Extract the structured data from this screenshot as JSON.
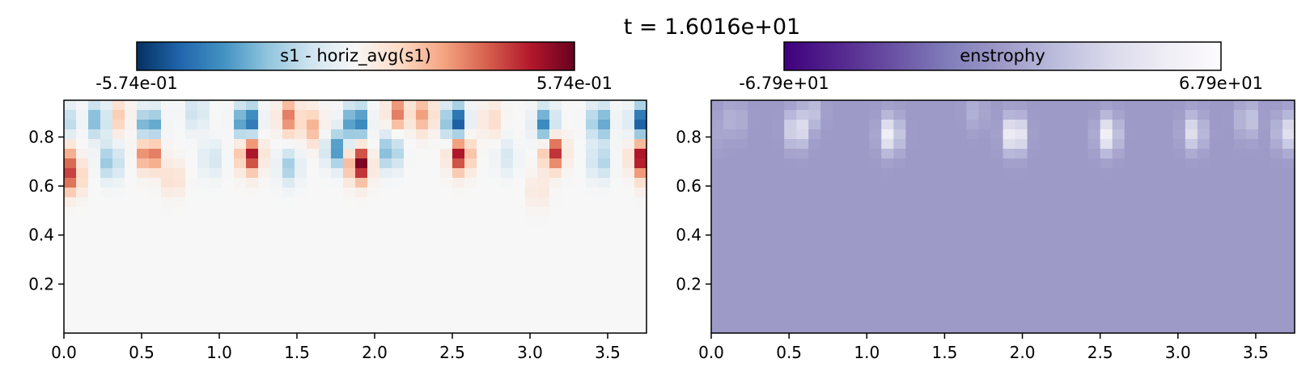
{
  "figure": {
    "title": "t = 1.6016e+01"
  },
  "chart_data": [
    {
      "type": "heatmap",
      "colormap": "RdBu_r",
      "colorbar": {
        "label": "s1 - horiz_avg(s1)",
        "min_label": "-5.74e-01",
        "max_label": "5.74e-01",
        "range": [
          -0.574,
          0.574
        ],
        "placement": "top"
      },
      "xlim": [
        0.0,
        3.75
      ],
      "ylim": [
        0.0,
        0.95
      ],
      "x_ticks": [
        0.0,
        0.5,
        1.0,
        1.5,
        2.0,
        2.5,
        3.0,
        3.5
      ],
      "x_tick_labels": [
        "0.0",
        "0.5",
        "1.0",
        "1.5",
        "2.0",
        "2.5",
        "3.0",
        "3.5"
      ],
      "y_ticks": [
        0.2,
        0.4,
        0.6,
        0.8
      ],
      "y_tick_labels": [
        "0.2",
        "0.4",
        "0.6",
        "0.8"
      ],
      "grid": false,
      "features": [
        {
          "x": 0.22,
          "y": 0.87,
          "value": -0.3
        },
        {
          "x": 0.35,
          "y": 0.88,
          "value": 0.15
        },
        {
          "x": 0.55,
          "y": 0.84,
          "value": -0.45
        },
        {
          "x": 0.85,
          "y": 0.9,
          "value": -0.15
        },
        {
          "x": 1.18,
          "y": 0.86,
          "value": -0.55
        },
        {
          "x": 1.45,
          "y": 0.88,
          "value": 0.3
        },
        {
          "x": 1.6,
          "y": 0.84,
          "value": 0.2
        },
        {
          "x": 1.88,
          "y": 0.86,
          "value": -0.5
        },
        {
          "x": 2.15,
          "y": 0.9,
          "value": 0.3
        },
        {
          "x": 2.32,
          "y": 0.89,
          "value": 0.25
        },
        {
          "x": 2.52,
          "y": 0.86,
          "value": -0.55
        },
        {
          "x": 2.75,
          "y": 0.87,
          "value": 0.12
        },
        {
          "x": 3.1,
          "y": 0.85,
          "value": -0.4
        },
        {
          "x": 3.45,
          "y": 0.86,
          "value": -0.35
        },
        {
          "x": 3.72,
          "y": 0.86,
          "value": -0.5
        },
        {
          "x": 0.05,
          "y": 0.64,
          "value": 0.35
        },
        {
          "x": 0.55,
          "y": 0.74,
          "value": 0.45
        },
        {
          "x": 1.2,
          "y": 0.73,
          "value": 0.5
        },
        {
          "x": 1.9,
          "y": 0.69,
          "value": 0.57
        },
        {
          "x": 2.55,
          "y": 0.73,
          "value": 0.5
        },
        {
          "x": 3.15,
          "y": 0.74,
          "value": 0.45
        },
        {
          "x": 3.72,
          "y": 0.72,
          "value": 0.5
        },
        {
          "x": 0.3,
          "y": 0.7,
          "value": -0.25
        },
        {
          "x": 0.95,
          "y": 0.71,
          "value": -0.12
        },
        {
          "x": 1.45,
          "y": 0.68,
          "value": -0.2
        },
        {
          "x": 1.75,
          "y": 0.75,
          "value": -0.35
        },
        {
          "x": 2.1,
          "y": 0.74,
          "value": -0.3
        },
        {
          "x": 2.85,
          "y": 0.72,
          "value": -0.1
        },
        {
          "x": 3.45,
          "y": 0.7,
          "value": -0.2
        },
        {
          "x": 3.05,
          "y": 0.58,
          "value": 0.08
        },
        {
          "x": 0.7,
          "y": 0.63,
          "value": 0.12
        }
      ]
    },
    {
      "type": "heatmap",
      "colormap": "Purples_r",
      "colorbar": {
        "label": "enstrophy",
        "min_label": "-6.79e+01",
        "max_label": "6.79e+01",
        "range": [
          -67.9,
          67.9
        ],
        "placement": "top"
      },
      "xlim": [
        0.0,
        3.75
      ],
      "ylim": [
        0.0,
        0.95
      ],
      "x_ticks": [
        0.0,
        0.5,
        1.0,
        1.5,
        2.0,
        2.5,
        3.0,
        3.5
      ],
      "x_tick_labels": [
        "0.0",
        "0.5",
        "1.0",
        "1.5",
        "2.0",
        "2.5",
        "3.0",
        "3.5"
      ],
      "y_ticks": [
        0.2,
        0.4,
        0.6,
        0.8
      ],
      "y_tick_labels": [
        "0.2",
        "0.4",
        "0.6",
        "0.8"
      ],
      "grid": false,
      "background_value": 0.0,
      "features": [
        {
          "x": 0.55,
          "y": 0.83,
          "value": 45
        },
        {
          "x": 0.65,
          "y": 0.9,
          "value": 20
        },
        {
          "x": 1.15,
          "y": 0.81,
          "value": 55
        },
        {
          "x": 1.95,
          "y": 0.81,
          "value": 67
        },
        {
          "x": 2.55,
          "y": 0.81,
          "value": 55
        },
        {
          "x": 3.1,
          "y": 0.82,
          "value": 40
        },
        {
          "x": 3.45,
          "y": 0.87,
          "value": 25
        },
        {
          "x": 3.7,
          "y": 0.82,
          "value": 40
        },
        {
          "x": 0.15,
          "y": 0.87,
          "value": 15
        },
        {
          "x": 1.7,
          "y": 0.9,
          "value": 12
        }
      ]
    }
  ]
}
